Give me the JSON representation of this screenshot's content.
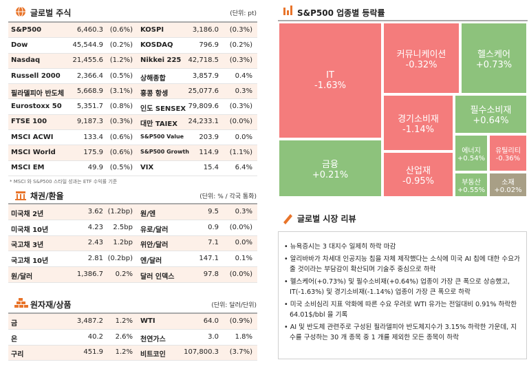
{
  "stocks": {
    "title": "글로벌 주식",
    "unit": "(단위: pt)",
    "rows": [
      [
        "S&P500",
        "6,460.3",
        "(0.6%)",
        "KOSPI",
        "3,186.0",
        "(0.3%)"
      ],
      [
        "Dow",
        "45,544.9",
        "(0.2%)",
        "KOSDAQ",
        "796.9",
        "(0.2%)"
      ],
      [
        "Nasdaq",
        "21,455.6",
        "(1.2%)",
        "Nikkei 225",
        "42,718.5",
        "(0.3%)"
      ],
      [
        "Russell 2000",
        "2,366.4",
        "(0.5%)",
        "상해종합",
        "3,857.9",
        "0.4%"
      ],
      [
        "필라델피아 반도체",
        "5,668.9",
        "(3.1%)",
        "홍콩 항셍",
        "25,077.6",
        "0.3%"
      ],
      [
        "Eurostoxx 50",
        "5,351.7",
        "(0.8%)",
        "인도 SENSEX",
        "79,809.6",
        "(0.3%)"
      ],
      [
        "FTSE 100",
        "9,187.3",
        "(0.3%)",
        "대만 TAIEX",
        "24,233.1",
        "(0.0%)"
      ],
      [
        "MSCI ACWI",
        "133.4",
        "(0.6%)",
        "S&P500 Value",
        "203.9",
        "0.0%"
      ],
      [
        "MSCI World",
        "175.9",
        "(0.6%)",
        "S&P500 Growth",
        "114.9",
        "(1.1%)"
      ],
      [
        "MSCI EM",
        "49.9",
        "(0.5%)",
        "VIX",
        "15.4",
        "6.4%"
      ]
    ],
    "note": "* MSCI 와 S&P500 스타일 성과는 ETF 수익률 기준"
  },
  "bonds": {
    "title": "채권/환율",
    "unit": "(단위: % / 각국 통화)",
    "rows": [
      [
        "미국채 2년",
        "3.62",
        "(1.2bp)",
        "원/엔",
        "9.5",
        "0.3%"
      ],
      [
        "미국채 10년",
        "4.23",
        "2.5bp",
        "유로/달러",
        "0.9",
        "(0.0%)"
      ],
      [
        "국고채 3년",
        "2.43",
        "1.2bp",
        "위안/달러",
        "7.1",
        "0.0%"
      ],
      [
        "국고채 10년",
        "2.81",
        "(0.2bp)",
        "엔/달러",
        "147.1",
        "0.1%"
      ],
      [
        "원/달러",
        "1,386.7",
        "0.2%",
        "달러 인덱스",
        "97.8",
        "(0.0%)"
      ]
    ]
  },
  "commodities": {
    "title": "원자재/상품",
    "unit": "(단위: 달러/단위)",
    "rows": [
      [
        "금",
        "3,487.2",
        "1.2%",
        "WTI",
        "64.0",
        "(0.9%)"
      ],
      [
        "은",
        "40.2",
        "2.6%",
        "천연가스",
        "3.0",
        "1.8%"
      ],
      [
        "구리",
        "451.9",
        "1.2%",
        "비트코인",
        "107,800.3",
        "(3.7%)"
      ]
    ]
  },
  "sectors": {
    "title": "S&P500 업종별 등락률",
    "tiles": [
      [
        "IT",
        "-1.63%"
      ],
      [
        "금융",
        "+0.21%"
      ],
      [
        "커뮤니케이션",
        "-0.32%"
      ],
      [
        "헬스케어",
        "+0.73%"
      ],
      [
        "경기소비재",
        "-1.14%"
      ],
      [
        "필수소비재",
        "+0.64%"
      ],
      [
        "에너지",
        "+0.54%"
      ],
      [
        "유틸리티",
        "-0.36%"
      ],
      [
        "산업재",
        "-0.95%"
      ],
      [
        "부동산",
        "+0.55%"
      ],
      [
        "소재",
        "+0.02%"
      ]
    ]
  },
  "review": {
    "title": "글로벌 시장 리뷰",
    "bullets": [
      "뉴욕증시는 3 대지수 일제히 하락 마감",
      "알리바바가 차세대 인공지능 칩을 자체 제작했다는 소식에 미국 AI 칩에 대한 수요가 줄 것이라는 부담감이 확산되며 기술주 중심으로 하락",
      "헬스케어(+0.73%) 및 필수소비재(+0.64%) 업종이 가장 큰 폭으로 상승했고, IT(-1.63%) 및 경기소비재(-1.14%) 업종이 가장 큰 폭으로 하락",
      "미국 소비심리 지표 악화에 따른 수요 우려로 WTI 유가는 전일대비 0.91% 하락한 64.01$/bbl 을 기록",
      "AI 및 반도체 관련주로 구성된 필라델피아 반도체지수가 3.15% 하락한 가운데, 지수를 구성하는 30 개 종목 중 1 개를 제외한 모든 종목이 하락"
    ]
  }
}
